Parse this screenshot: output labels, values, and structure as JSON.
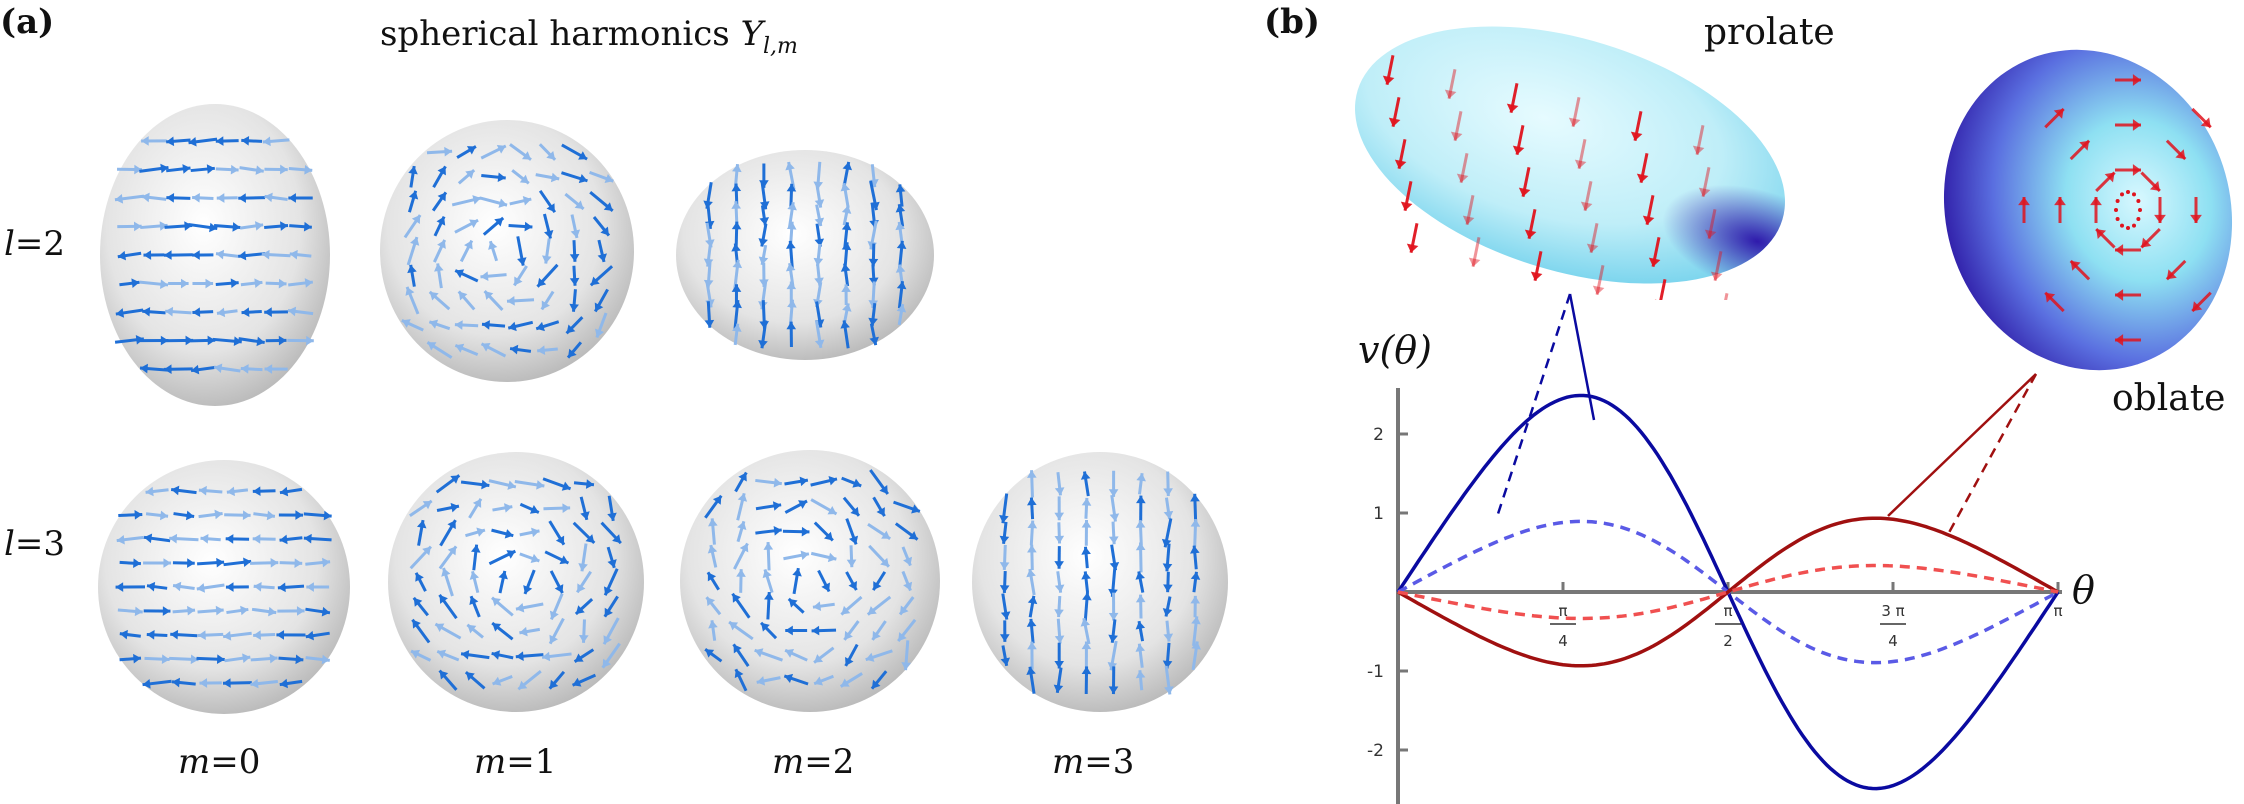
{
  "panel_a": {
    "label": "(a)",
    "title_text": "spherical harmonics ",
    "title_symbol": "Y",
    "title_subscript": "l,m",
    "row_labels": [
      {
        "var": "l",
        "val": "=2"
      },
      {
        "var": "l",
        "val": "=3"
      }
    ],
    "column_labels": [
      {
        "var": "m",
        "val": "=0"
      },
      {
        "var": "m",
        "val": "=1"
      },
      {
        "var": "m",
        "val": "=2"
      },
      {
        "var": "m",
        "val": "=3"
      }
    ],
    "colors": {
      "sphere": "#d9d9d9",
      "arrow": "#1f6fd6",
      "arrow_light": "#8fb8ea"
    }
  },
  "panel_b": {
    "label": "(b)",
    "prolate_label": "prolate",
    "oblate_label": "oblate",
    "colors": {
      "surface_light": "#cdf3fb",
      "surface_dark": "#3a1fb0",
      "arrow": "#e0141e"
    }
  },
  "chart_data": {
    "type": "line",
    "ylabel": "v(θ)",
    "xlabel": "θ",
    "xlim": [
      0,
      3.14159
    ],
    "ylim": [
      -2.5,
      2.5
    ],
    "x_ticks": [
      {
        "value": 0.7854,
        "num": "π",
        "den": "4"
      },
      {
        "value": 1.5708,
        "num": "π",
        "den": "2"
      },
      {
        "value": 2.3562,
        "num": "3 π",
        "den": "4"
      },
      {
        "value": 3.14159,
        "num": "π",
        "den": ""
      }
    ],
    "y_ticks": [
      {
        "value": 2,
        "label": "2"
      },
      {
        "value": 1,
        "label": "1"
      },
      {
        "value": -1,
        "label": "-1"
      },
      {
        "value": -2,
        "label": "-2"
      }
    ],
    "series": [
      {
        "style": "solid",
        "color": "#0a0aa0",
        "amplitude": 2.45,
        "form": "sin4"
      },
      {
        "style": "dashed",
        "color": "#5a5ae6",
        "amplitude": 0.88,
        "form": "sin4"
      },
      {
        "style": "solid",
        "color": "#a01010",
        "amplitude": -0.92,
        "form": "sin4"
      },
      {
        "style": "dashed",
        "color": "#f05050",
        "amplitude": -0.33,
        "form": "sin4"
      }
    ]
  }
}
